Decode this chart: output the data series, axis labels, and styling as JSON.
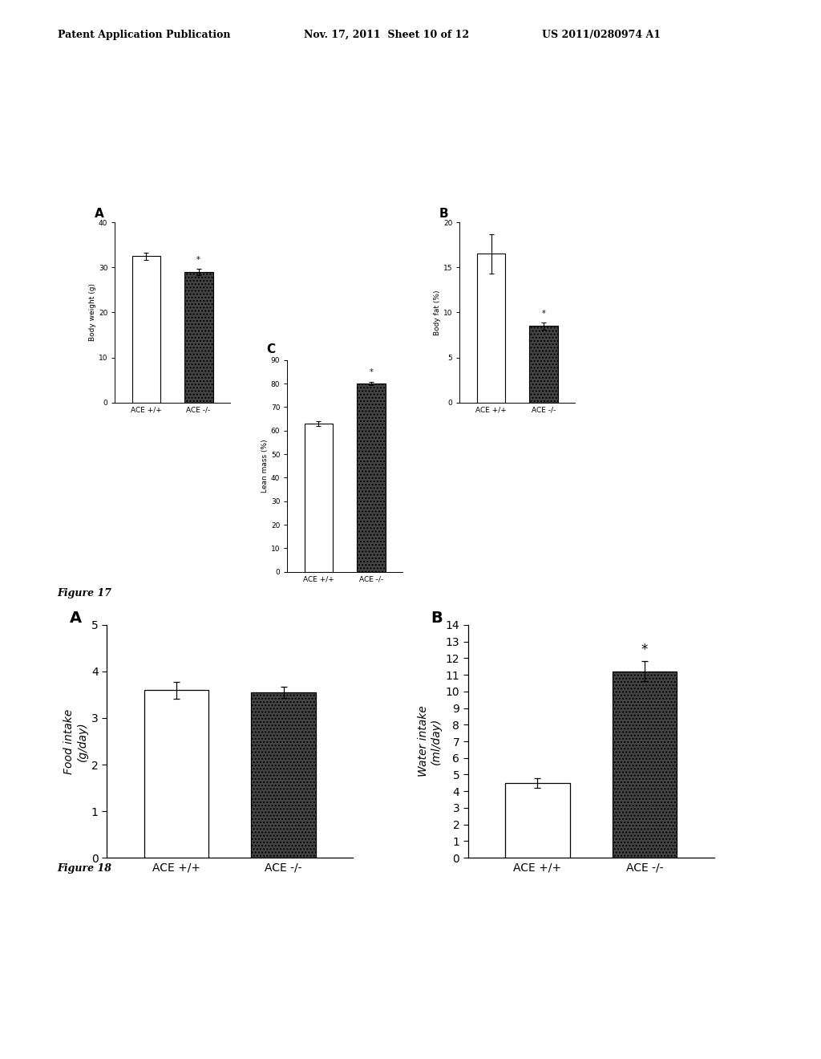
{
  "header_left": "Patent Application Publication",
  "header_mid": "Nov. 17, 2011  Sheet 10 of 12",
  "header_right": "US 2011/0280974 A1",
  "fig17_label": "Figure 17",
  "fig18_label": "Figure 18",
  "fig17": {
    "A": {
      "panel_label": "A",
      "ylabel": "Body weight (g)",
      "ylabel_italic": false,
      "ylim": [
        0,
        40
      ],
      "yticks": [
        0,
        10,
        20,
        30,
        40
      ],
      "categories": [
        "ACE +/+",
        "ACE -/-"
      ],
      "values": [
        32.5,
        29.0
      ],
      "errors": [
        0.8,
        0.7
      ],
      "star": true,
      "star_on": 1
    },
    "B": {
      "panel_label": "B",
      "ylabel": "Body fat (%)",
      "ylabel_italic": false,
      "ylim": [
        0,
        20
      ],
      "yticks": [
        0,
        5,
        10,
        15,
        20
      ],
      "categories": [
        "ACE +/+",
        "ACE -/-"
      ],
      "values": [
        16.5,
        8.5
      ],
      "errors": [
        2.2,
        0.4
      ],
      "star": true,
      "star_on": 1
    },
    "C": {
      "panel_label": "C",
      "ylabel": "Lean mass (%)",
      "ylabel_italic": false,
      "ylim": [
        0,
        90
      ],
      "yticks": [
        0,
        10,
        20,
        30,
        40,
        50,
        60,
        70,
        80,
        90
      ],
      "categories": [
        "ACE +/+",
        "ACE -/-"
      ],
      "values": [
        63,
        80
      ],
      "errors": [
        1.0,
        0.8
      ],
      "star": true,
      "star_on": 1
    }
  },
  "fig18": {
    "A": {
      "panel_label": "A",
      "ylabel": "Food intake\n(g/day)",
      "ylabel_italic": true,
      "ylim": [
        0,
        5
      ],
      "yticks": [
        0,
        1,
        2,
        3,
        4,
        5
      ],
      "categories": [
        "ACE +/+",
        "ACE -/-"
      ],
      "values": [
        3.6,
        3.55
      ],
      "errors": [
        0.18,
        0.12
      ],
      "star": false,
      "star_on": 1
    },
    "B": {
      "panel_label": "B",
      "ylabel": "Water intake\n(ml/day)",
      "ylabel_italic": true,
      "ylim": [
        0,
        14
      ],
      "yticks": [
        0,
        1,
        2,
        3,
        4,
        5,
        6,
        7,
        8,
        9,
        10,
        11,
        12,
        13,
        14
      ],
      "categories": [
        "ACE +/+",
        "ACE -/-"
      ],
      "values": [
        4.5,
        11.2
      ],
      "errors": [
        0.3,
        0.6
      ],
      "star": true,
      "star_on": 1
    }
  },
  "bg_color": "#ffffff",
  "bar_edge_color": "#000000",
  "error_color": "#000000",
  "dark_bar_color": "#444444"
}
